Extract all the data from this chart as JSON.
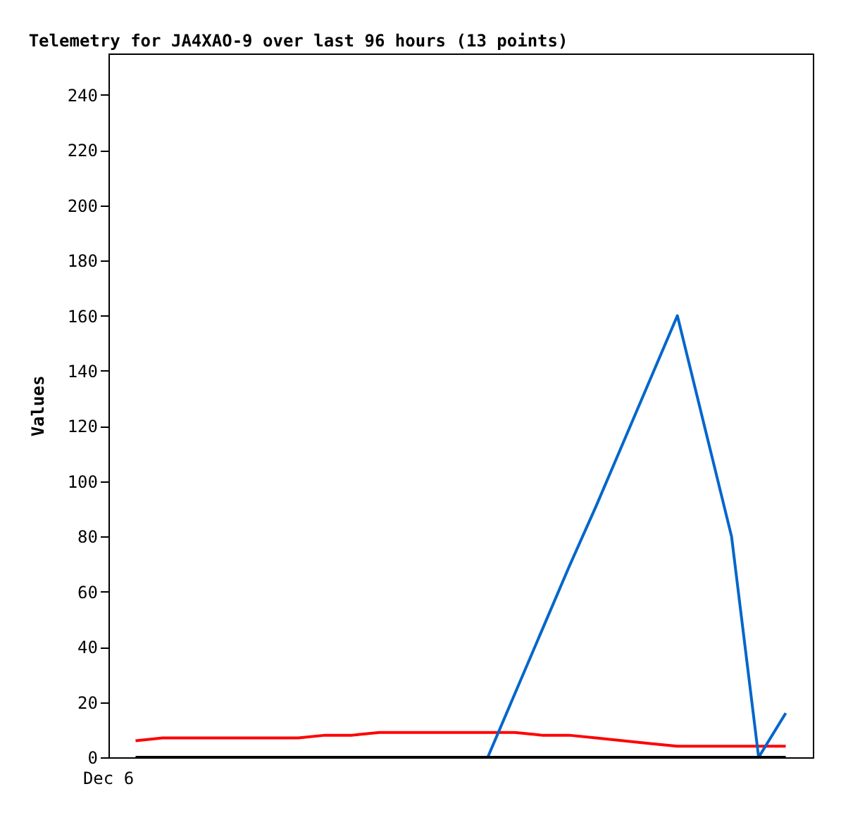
{
  "chart_data": {
    "type": "line",
    "title": "Telemetry for JA4XAO-9 over last 96 hours (13 points)",
    "ylabel": "Values",
    "categories": [
      null,
      null,
      null,
      null,
      null,
      null,
      null,
      null,
      null,
      null,
      null,
      null,
      null,
      null,
      null,
      null,
      null,
      null,
      null,
      null,
      null,
      null,
      null,
      null,
      null
    ],
    "annotations": [
      "Dec 6"
    ],
    "ylim": [
      0,
      255
    ],
    "yticks": [
      0,
      20,
      40,
      60,
      80,
      100,
      120,
      140,
      160,
      180,
      200,
      220,
      240
    ],
    "series": [
      {
        "color": "#ff0000",
        "values": [
          6,
          7,
          7,
          7,
          7,
          7,
          7,
          8,
          8,
          9,
          9,
          9,
          9,
          9,
          9,
          8,
          8,
          7,
          6,
          5,
          4,
          4,
          4,
          4,
          4
        ]
      },
      {
        "color": "#0066cc",
        "values": [
          null,
          null,
          null,
          null,
          null,
          null,
          null,
          null,
          null,
          null,
          null,
          null,
          null,
          0,
          23,
          46,
          69,
          91,
          114,
          137,
          160,
          120,
          80,
          0,
          16
        ]
      },
      {
        "color": "#000000",
        "values": [
          0,
          0,
          0,
          0,
          0,
          0,
          0,
          0,
          0,
          0,
          0,
          0,
          0,
          0,
          0,
          0,
          0,
          0,
          0,
          0,
          0,
          0,
          0,
          0,
          0
        ]
      }
    ],
    "tick_labels": "y",
    "grid": false,
    "legend": false,
    "marker": "none",
    "line_style": "solid"
  }
}
